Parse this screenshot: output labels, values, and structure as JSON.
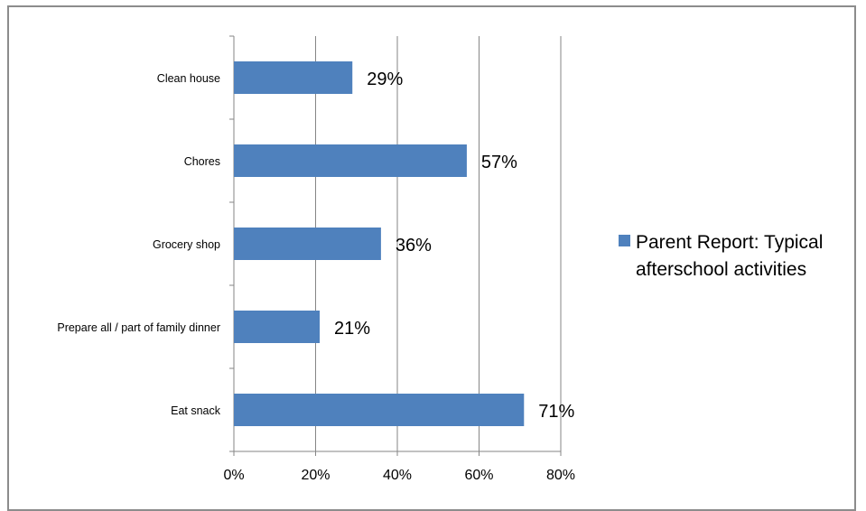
{
  "chart_data": {
    "type": "bar",
    "orientation": "horizontal",
    "categories": [
      "Clean house",
      "Chores",
      "Grocery shop",
      "Prepare all / part of family dinner",
      "Eat snack"
    ],
    "series": [
      {
        "name": "Parent Report: Typical afterschool activities",
        "values": [
          29,
          57,
          36,
          21,
          71
        ],
        "color": "#4f81bd"
      }
    ],
    "data_labels": [
      "29%",
      "57%",
      "36%",
      "21%",
      "71%"
    ],
    "xlim": [
      0,
      80
    ],
    "x_ticks": [
      "0%",
      "20%",
      "40%",
      "60%",
      "80%"
    ],
    "grid": "vertical",
    "legend_position": "right",
    "legend_lines": [
      "Parent Report: Typical",
      "afterschool activities"
    ]
  }
}
